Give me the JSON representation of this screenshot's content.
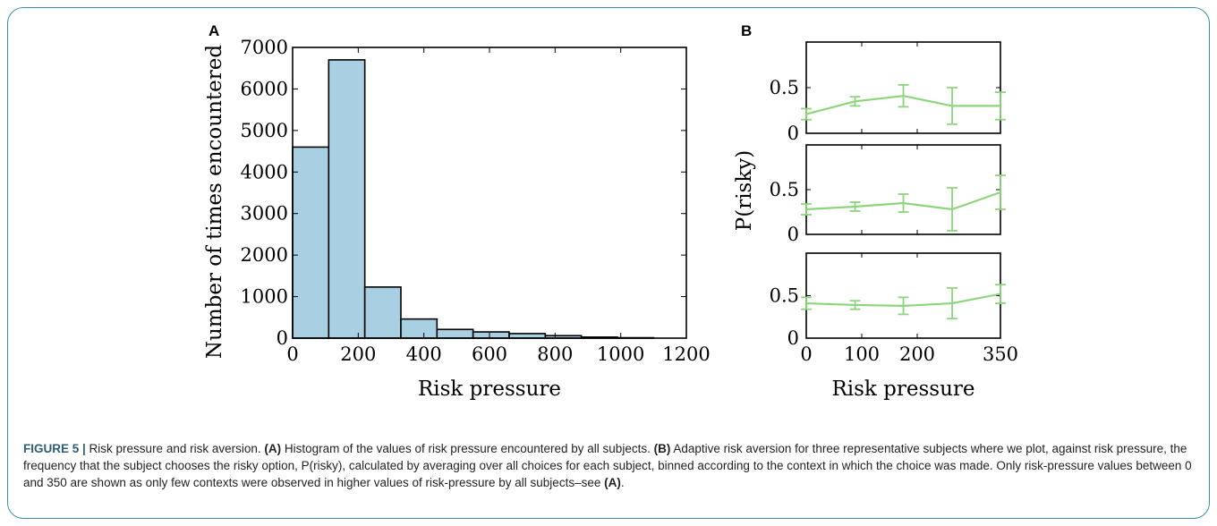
{
  "figure": {
    "panel_a_letter": "A",
    "panel_b_letter": "B",
    "caption": {
      "label": "FIGURE 5 |",
      "text1": " Risk pressure and risk aversion. ",
      "ref_a": "(A)",
      "text2": " Histogram of the values of risk pressure encountered by all subjects. ",
      "ref_b": "(B)",
      "text3": " Adaptive risk aversion for three representative subjects where we plot, against risk pressure, the frequency that the subject chooses the risky option, P(risky), calculated by averaging over all choices for each subject, binned according to the context in which the choice was made. Only risk-pressure values between 0 and 350 are shown as only few contexts were observed in higher values of risk-pressure by all subjects–see ",
      "ref_a2": "(A)",
      "text4": "."
    }
  },
  "colors": {
    "bar_fill": "#a8cfe2",
    "line": "#8ed47d",
    "frame": "#3f8ea6"
  },
  "chart_data": [
    {
      "type": "bar",
      "panel": "A",
      "xlabel": "Risk pressure",
      "ylabel": "Number of times encountered",
      "xlim": [
        0,
        1200
      ],
      "ylim": [
        0,
        7000
      ],
      "xticks": [
        0,
        200,
        400,
        600,
        800,
        1000,
        1200
      ],
      "yticks": [
        0,
        1000,
        2000,
        3000,
        4000,
        5000,
        6000,
        7000
      ],
      "bin_edges": [
        0,
        110,
        220,
        330,
        440,
        550,
        660,
        770,
        880,
        990,
        1100
      ],
      "values": [
        4600,
        6700,
        1230,
        460,
        210,
        150,
        110,
        60,
        25,
        10
      ]
    },
    {
      "type": "line",
      "panel": "B",
      "xlabel": "Risk pressure",
      "ylabel": "P(risky)",
      "xlim": [
        0,
        350
      ],
      "ylim": [
        0,
        1
      ],
      "xticks": [
        0,
        100,
        200,
        350
      ],
      "yticks": [
        0.0,
        0.5
      ],
      "x": [
        0,
        88,
        175,
        263,
        350
      ],
      "series": [
        {
          "values": [
            0.21,
            0.35,
            0.41,
            0.3,
            0.3
          ],
          "errors": [
            0.06,
            0.05,
            0.12,
            0.2,
            0.15
          ]
        },
        {
          "values": [
            0.28,
            0.31,
            0.35,
            0.28,
            0.47
          ],
          "errors": [
            0.06,
            0.05,
            0.1,
            0.24,
            0.19
          ]
        },
        {
          "values": [
            0.41,
            0.39,
            0.38,
            0.41,
            0.52
          ],
          "errors": [
            0.07,
            0.05,
            0.1,
            0.18,
            0.11
          ]
        }
      ]
    }
  ]
}
